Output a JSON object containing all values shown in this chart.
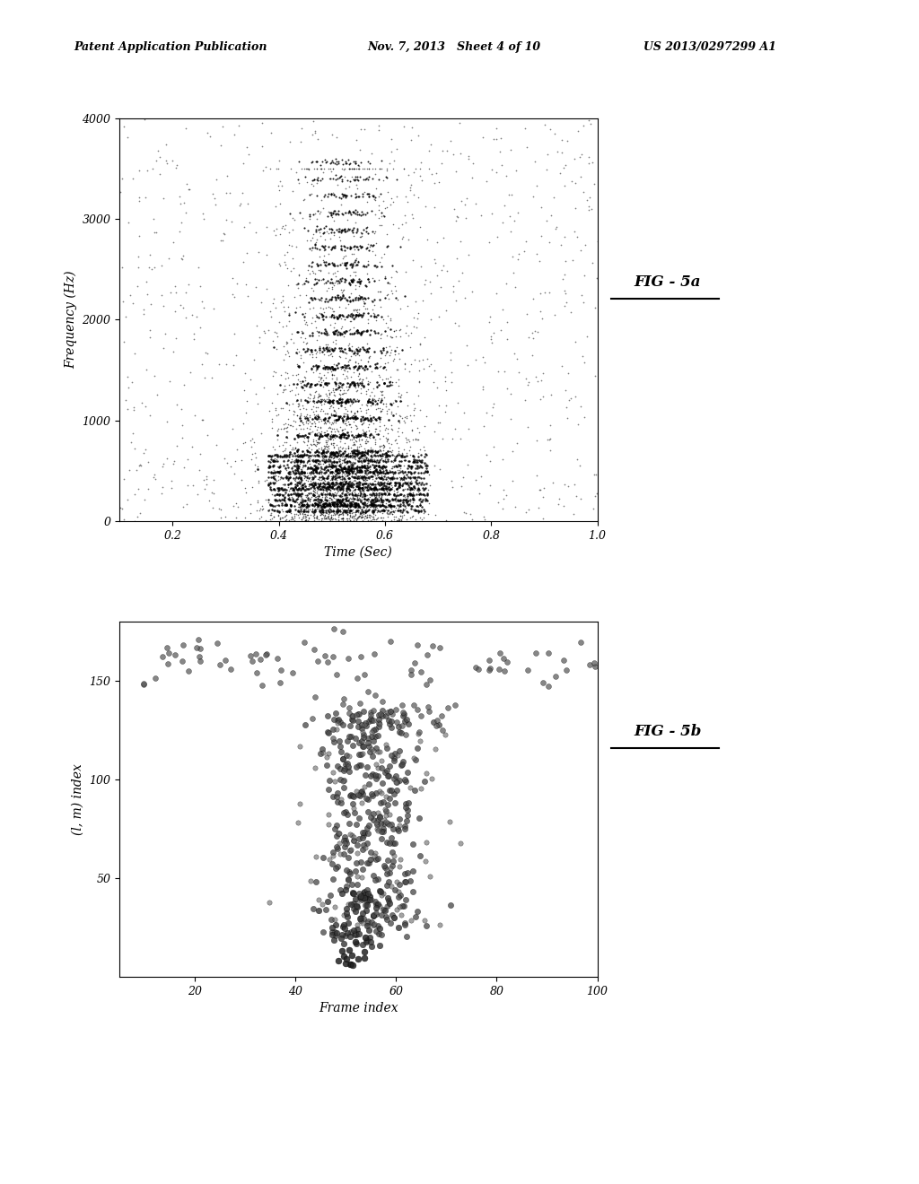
{
  "fig_width": 10.24,
  "fig_height": 13.2,
  "bg_color": "#ffffff",
  "header_text": "Patent Application Publication",
  "header_date": "Nov. 7, 2013   Sheet 4 of 10",
  "header_patent": "US 2013/0297299 A1",
  "fig5a_label": "FIG - 5a",
  "fig5b_label": "FIG - 5b",
  "plot1": {
    "xlim": [
      0.1,
      1.0
    ],
    "ylim": [
      0,
      4000
    ],
    "xlabel": "Time (Sec)",
    "ylabel": "Frequency (Hz)",
    "xticks": [
      0.2,
      0.4,
      0.6,
      0.8,
      1.0
    ],
    "yticks": [
      0,
      1000,
      2000,
      3000,
      4000
    ]
  },
  "plot2": {
    "xlim": [
      5,
      100
    ],
    "ylim": [
      0,
      180
    ],
    "xlabel": "Frame index",
    "ylabel": "(l, m) index",
    "xticks": [
      20,
      40,
      60,
      80,
      100
    ],
    "yticks": [
      50,
      100,
      150
    ]
  }
}
